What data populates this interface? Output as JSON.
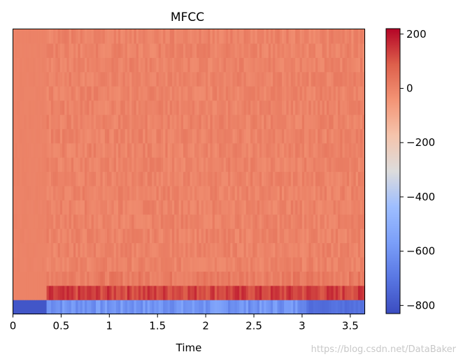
{
  "chart_data": {
    "type": "heatmap",
    "title": "MFCC",
    "xlabel": "Time",
    "ylabel": "",
    "xlim": [
      0,
      3.65
    ],
    "x_ticks": [
      0,
      0.5,
      1,
      1.5,
      2,
      2.5,
      3,
      3.5
    ],
    "x_tick_labels": [
      "0",
      "0.5",
      "1",
      "1.5",
      "2",
      "2.5",
      "3",
      "3.5"
    ],
    "n_coefficients": 20,
    "onset_time": 0.34,
    "colormap": "coolwarm",
    "colorbar": {
      "vmin": -830,
      "vmax": 220,
      "ticks": [
        200,
        0,
        -200,
        -400,
        -600,
        -800
      ],
      "tick_labels": [
        "200",
        "0",
        "−200",
        "−400",
        "−600",
        "−800"
      ]
    },
    "values_approx": {
      "coef0_before_onset": -800,
      "coef0_after_onset": -600,
      "coef1_after_onset": 130,
      "coef2_after_onset": 20,
      "higher_coefs": 0
    }
  },
  "watermark": "https://blog.csdn.net/DataBaker"
}
